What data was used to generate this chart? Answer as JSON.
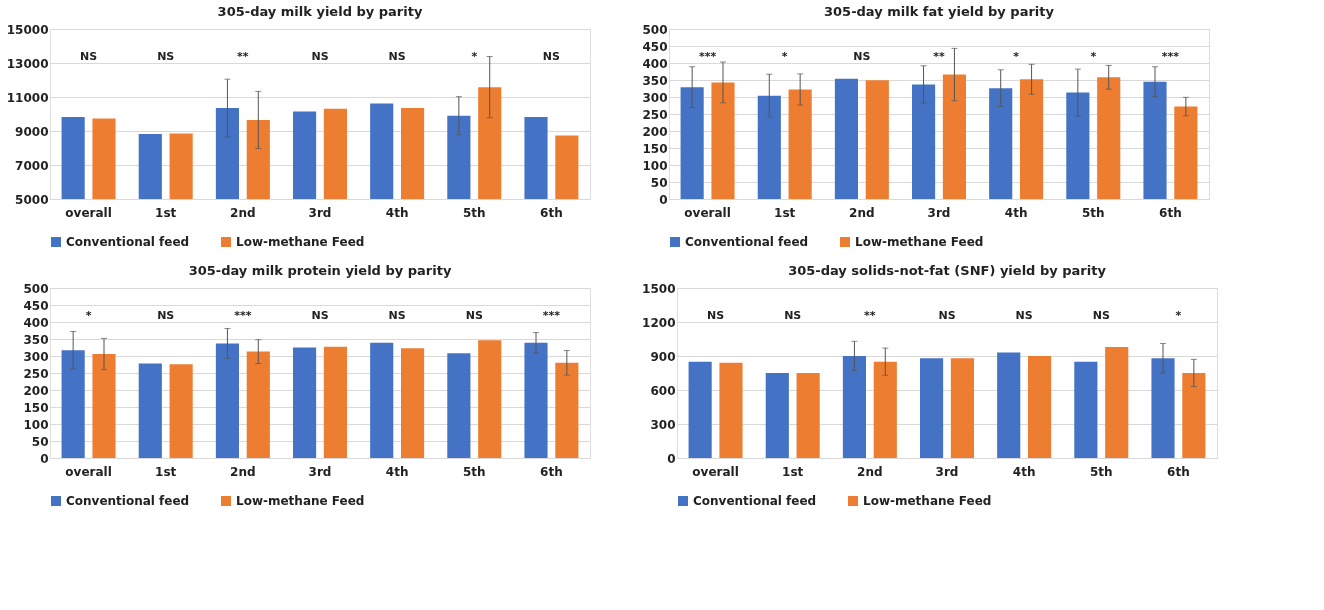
{
  "chart_data": [
    {
      "type": "bar",
      "title": "305-day milk yield by parity",
      "categories": [
        "overall",
        "1st",
        "2nd",
        "3rd",
        "4th",
        "5th",
        "6th"
      ],
      "ylim": [
        5000,
        15000
      ],
      "yticks": [
        5000,
        7000,
        9000,
        11000,
        13000,
        15000
      ],
      "grid": "y",
      "legend": "bottom",
      "series": [
        {
          "name": "Conventional feed",
          "color": "#4472c4",
          "values": [
            9830,
            8820,
            10350,
            10150,
            10620,
            9900,
            9830
          ],
          "errors": [
            null,
            null,
            1700,
            null,
            null,
            1120,
            null
          ]
        },
        {
          "name": "Low-methane Feed",
          "color": "#ed7d31",
          "values": [
            9730,
            8860,
            9650,
            10310,
            10350,
            11580,
            8730
          ],
          "errors": [
            null,
            null,
            1680,
            null,
            null,
            1800,
            null
          ]
        }
      ],
      "annotations": [
        "NS",
        "NS",
        "**",
        "NS",
        "NS",
        "*",
        "NS"
      ]
    },
    {
      "type": "bar",
      "title": "305-day milk fat yield by parity",
      "categories": [
        "overall",
        "1st",
        "2nd",
        "3rd",
        "4th",
        "5th",
        "6th"
      ],
      "ylim": [
        0,
        500
      ],
      "yticks": [
        0,
        50,
        100,
        150,
        200,
        250,
        300,
        350,
        400,
        450,
        500
      ],
      "grid": "y",
      "legend": "bottom",
      "series": [
        {
          "name": "Conventional feed",
          "color": "#4472c4",
          "values": [
            329,
            304,
            354,
            337,
            326,
            313,
            345
          ],
          "errors": [
            60,
            63,
            null,
            55,
            54,
            69,
            44
          ]
        },
        {
          "name": "Low-methane Feed",
          "color": "#ed7d31",
          "values": [
            343,
            322,
            349,
            366,
            352,
            358,
            272
          ],
          "errors": [
            60,
            46,
            null,
            77,
            44,
            35,
            27
          ]
        }
      ],
      "annotations": [
        "***",
        "*",
        "NS",
        "**",
        "*",
        "*",
        "***"
      ]
    },
    {
      "type": "bar",
      "title": "305-day milk protein yield by parity",
      "categories": [
        "overall",
        "1st",
        "2nd",
        "3rd",
        "4th",
        "5th",
        "6th"
      ],
      "ylim": [
        0,
        500
      ],
      "yticks": [
        0,
        50,
        100,
        150,
        200,
        250,
        300,
        350,
        400,
        450,
        500
      ],
      "grid": "y",
      "legend": "bottom",
      "series": [
        {
          "name": "Conventional feed",
          "color": "#4472c4",
          "values": [
            317,
            278,
            337,
            325,
            339,
            308,
            339
          ],
          "errors": [
            55,
            null,
            44,
            null,
            null,
            null,
            30
          ]
        },
        {
          "name": "Low-methane Feed",
          "color": "#ed7d31",
          "values": [
            306,
            276,
            313,
            327,
            323,
            346,
            280
          ],
          "errors": [
            46,
            null,
            35,
            null,
            null,
            null,
            36
          ]
        }
      ],
      "annotations": [
        "*",
        "NS",
        "***",
        "NS",
        "NS",
        "NS",
        "***"
      ]
    },
    {
      "type": "bar",
      "title": "305-day solids-not-fat (SNF) yield by parity",
      "categories": [
        "overall",
        "1st",
        "2nd",
        "3rd",
        "4th",
        "5th",
        "6th"
      ],
      "ylim": [
        0,
        1500
      ],
      "yticks": [
        0,
        300,
        600,
        900,
        1200,
        1500
      ],
      "grid": "y",
      "legend": "bottom",
      "series": [
        {
          "name": "Conventional feed",
          "color": "#4472c4",
          "values": [
            850,
            750,
            900,
            880,
            930,
            850,
            880
          ],
          "errors": [
            null,
            null,
            130,
            null,
            null,
            null,
            130
          ]
        },
        {
          "name": "Low-methane Feed",
          "color": "#ed7d31",
          "values": [
            840,
            750,
            850,
            880,
            900,
            980,
            750
          ],
          "errors": [
            null,
            null,
            120,
            null,
            null,
            null,
            120
          ]
        }
      ],
      "annotations": [
        "NS",
        "NS",
        "**",
        "NS",
        "NS",
        "NS",
        "*"
      ]
    }
  ]
}
